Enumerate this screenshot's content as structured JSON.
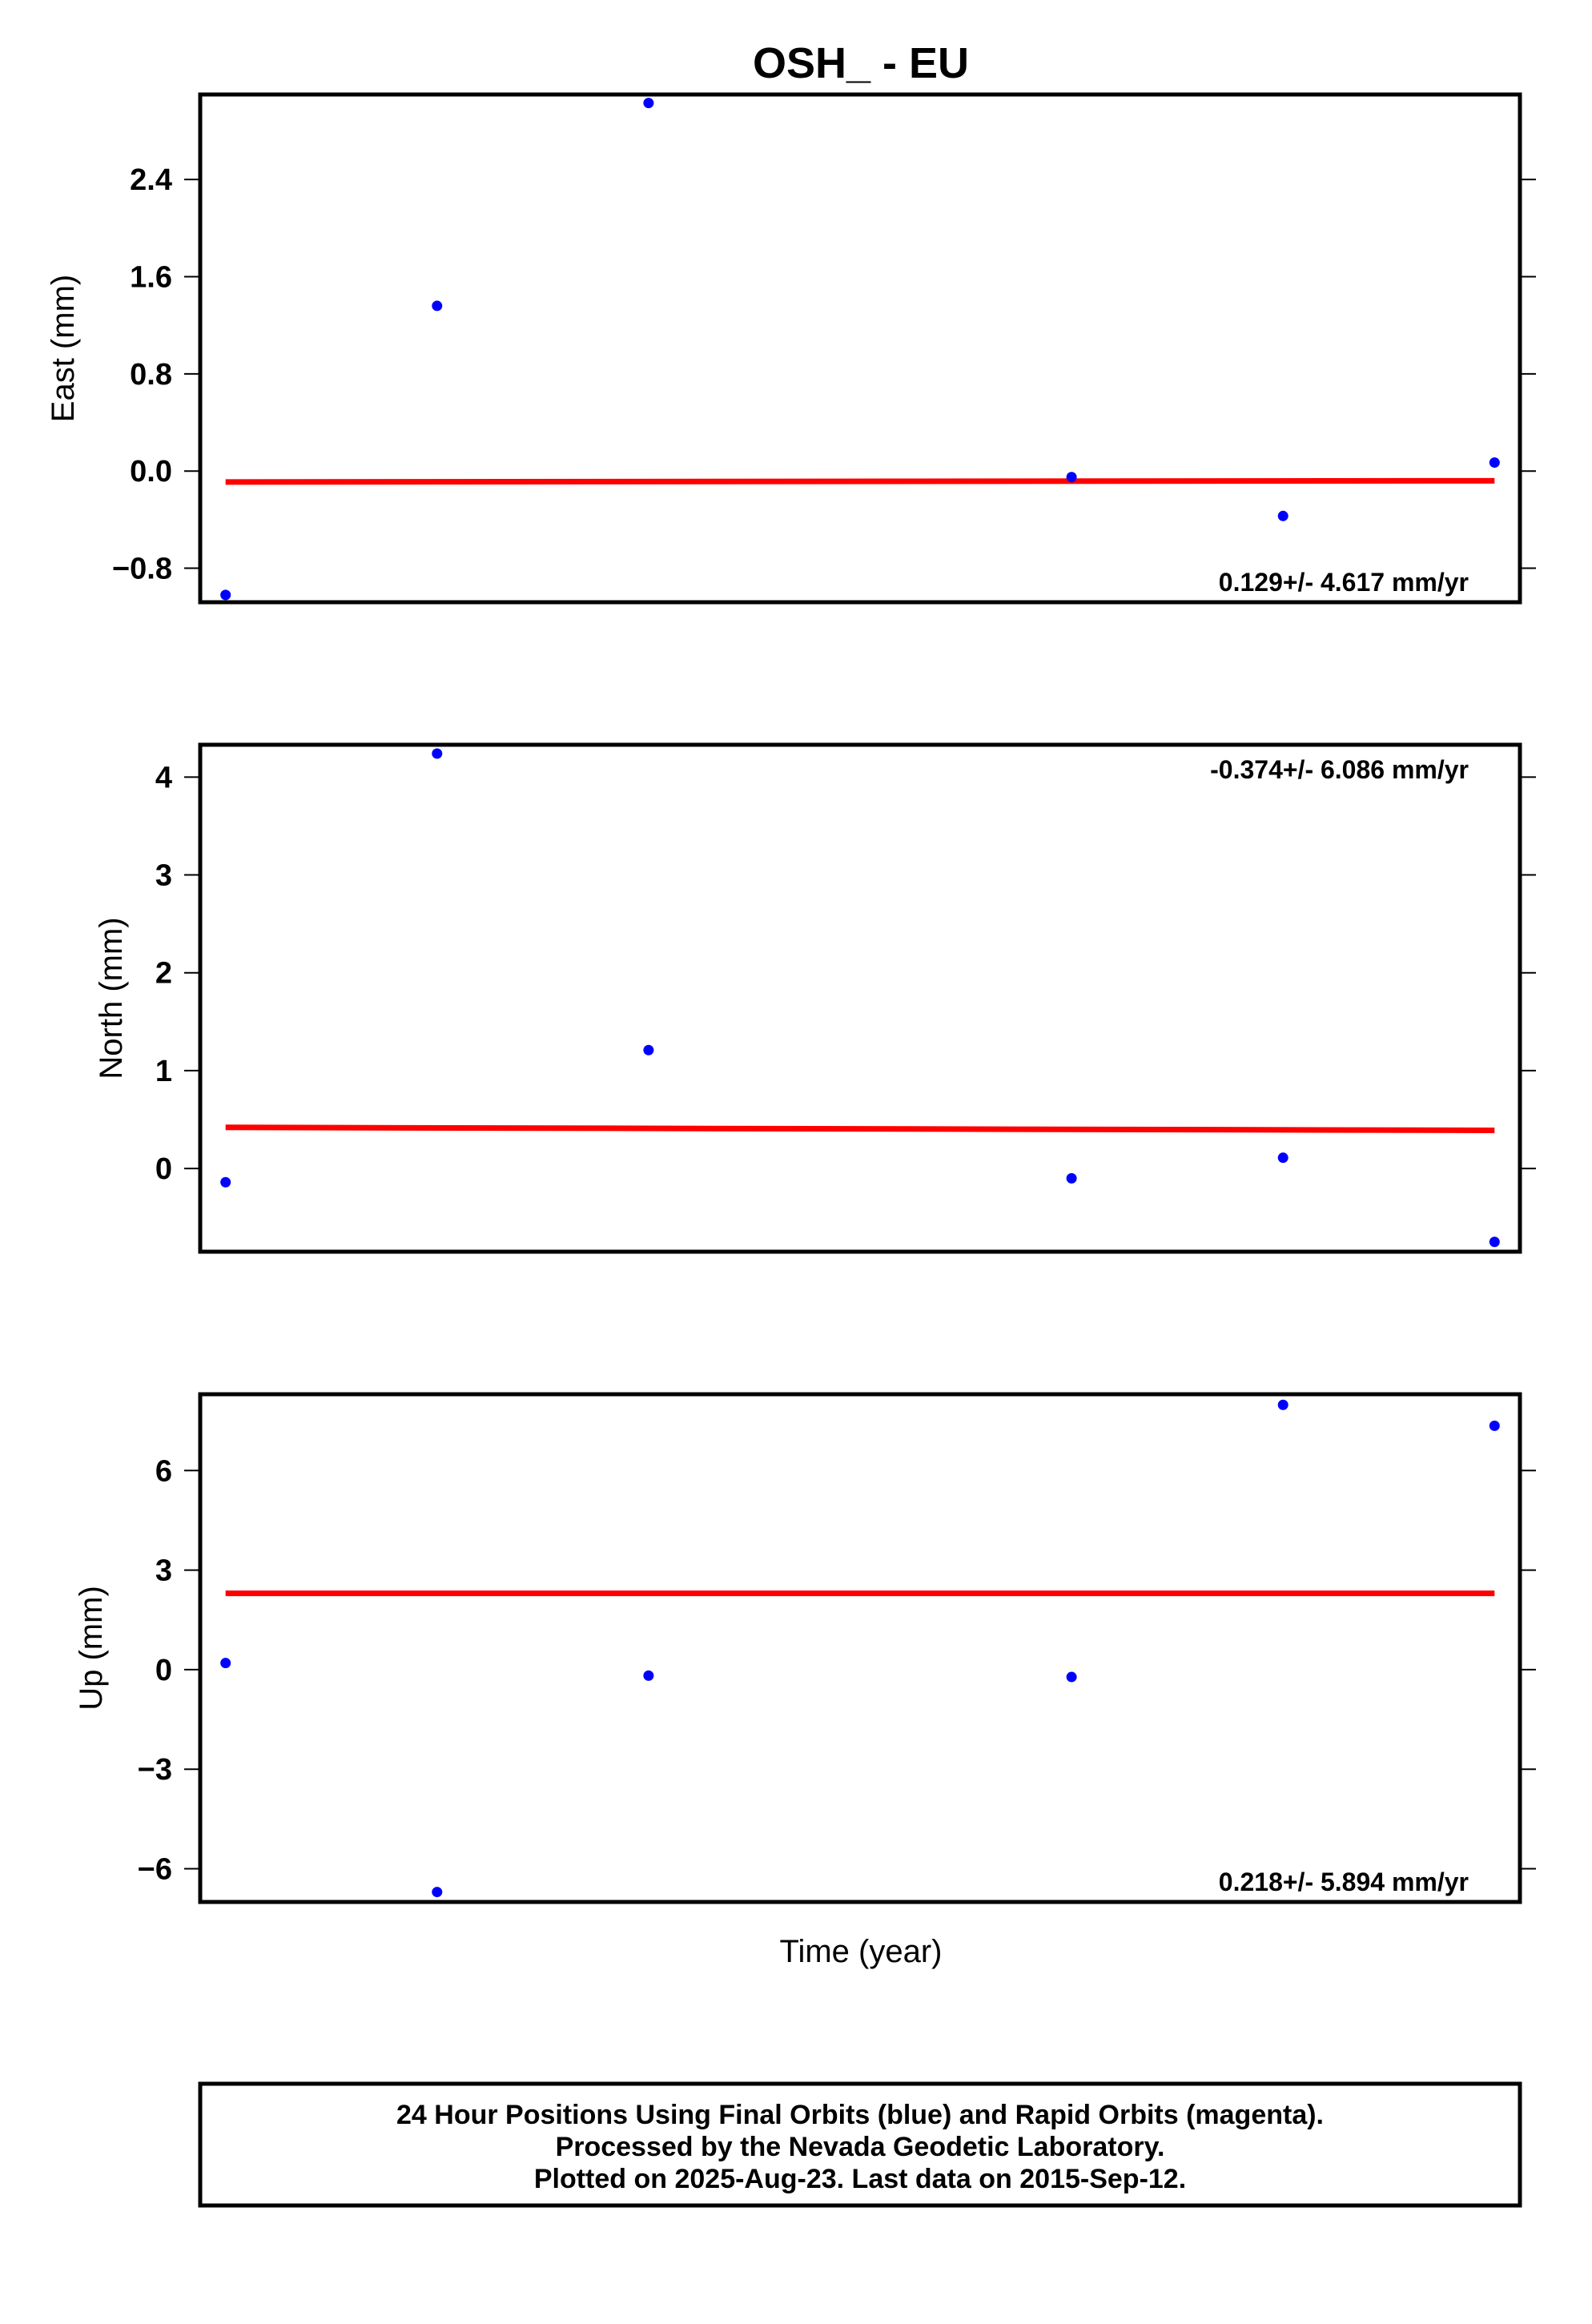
{
  "title": "OSH_ - EU",
  "xlabel": "Time (year)",
  "colors": {
    "points": "#0000ff",
    "fit": "#ff0000",
    "frame": "#000000"
  },
  "caption": [
    "24 Hour Positions Using Final Orbits (blue) and Rapid Orbits (magenta).",
    "Processed by the Nevada Geodetic Laboratory.",
    "Plotted on 2025-Aug-23. Last data on 2015-Sep-12."
  ],
  "chart_data": [
    {
      "type": "scatter",
      "ylabel": "East (mm)",
      "rate_label": "0.129+/- 4.617 mm/yr",
      "rate_position": "bottom-right",
      "ylim": [
        -1.08,
        3.1
      ],
      "yticks": [
        -0.8,
        0.0,
        0.8,
        1.6,
        2.4
      ],
      "ytick_labels": [
        "−0.8",
        "0.0",
        "0.8",
        "1.6",
        "2.4"
      ],
      "x": [
        1,
        2,
        3,
        5,
        6,
        7
      ],
      "xlim": [
        0.88,
        7.12
      ],
      "y": [
        -1.02,
        1.36,
        3.03,
        -0.05,
        -0.37,
        0.07
      ],
      "fit": {
        "x": [
          1,
          7
        ],
        "y": [
          -0.09,
          -0.08
        ]
      }
    },
    {
      "type": "scatter",
      "ylabel": "North (mm)",
      "rate_label": "-0.374+/- 6.086 mm/yr",
      "rate_position": "top-right",
      "ylim": [
        -0.85,
        4.33
      ],
      "yticks": [
        0,
        1,
        2,
        3,
        4
      ],
      "ytick_labels": [
        "0",
        "1",
        "2",
        "3",
        "4"
      ],
      "x": [
        1,
        2,
        3,
        5,
        6,
        7
      ],
      "xlim": [
        0.88,
        7.12
      ],
      "y": [
        -0.14,
        4.24,
        1.21,
        -0.1,
        0.11,
        -0.75
      ],
      "fit": {
        "x": [
          1,
          7
        ],
        "y": [
          0.42,
          0.39
        ]
      }
    },
    {
      "type": "scatter",
      "ylabel": "Up (mm)",
      "rate_label": "0.218+/- 5.894 mm/yr",
      "rate_position": "bottom-right",
      "ylim": [
        -7.0,
        8.3
      ],
      "yticks": [
        -6,
        -3,
        0,
        3,
        6
      ],
      "ytick_labels": [
        "−6",
        "−3",
        "0",
        "3",
        "6"
      ],
      "x": [
        1,
        2,
        3,
        5,
        6,
        7
      ],
      "xlim": [
        0.88,
        7.12
      ],
      "y": [
        0.2,
        -6.7,
        -0.18,
        -0.22,
        7.98,
        7.35
      ],
      "fit": {
        "x": [
          1,
          7
        ],
        "y": [
          2.3,
          2.3
        ]
      }
    }
  ]
}
